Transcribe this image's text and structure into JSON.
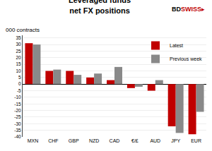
{
  "chart_data": {
    "type": "bar",
    "title": "Leveraged funds",
    "subtitle": "net FX positions",
    "ylabel": "000 contracts",
    "categories": [
      "MXN",
      "CHF",
      "GBP",
      "NZD",
      "CAD",
      "€/£",
      "AUD",
      "JPY",
      "EUR"
    ],
    "series": [
      {
        "name": "Latest",
        "color": "#c00000",
        "values": [
          31,
          10,
          10,
          5,
          3,
          -3,
          -5,
          -32,
          -38
        ]
      },
      {
        "name": "Previous week",
        "color": "#898989",
        "values": [
          30,
          11,
          7,
          8,
          13,
          -2,
          3,
          -37,
          -21
        ]
      }
    ],
    "ylim": [
      -40,
      37
    ],
    "yticks": [
      -40,
      -35,
      -30,
      -25,
      -20,
      -15,
      -10,
      -5,
      0,
      5,
      10,
      15,
      20,
      25,
      30,
      35
    ],
    "grid": true,
    "legend": "upper right",
    "annotations": [
      {
        "text": "BD",
        "color": "#000000"
      },
      {
        "text": "SWISS",
        "color": "#c00000"
      },
      {
        "text": "▸",
        "color": "#c00000"
      }
    ]
  }
}
